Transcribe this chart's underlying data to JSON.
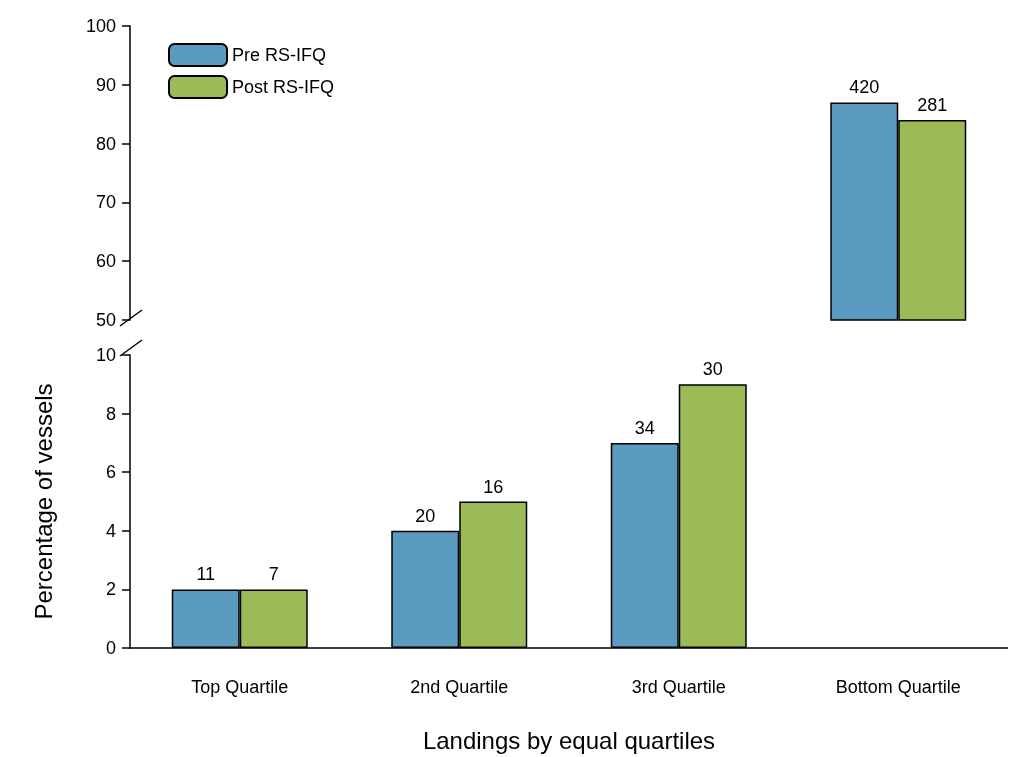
{
  "chart_data": [
    {
      "type": "bar",
      "categories": [
        "Top Quartile",
        "2nd Quartile",
        "3rd Quartile",
        "Bottom Quartile"
      ],
      "ylim": [
        50,
        100
      ],
      "yticks": [
        50,
        60,
        70,
        80,
        90,
        100
      ],
      "tick_labels": "y",
      "legend": "top left",
      "grid": false,
      "annotations": [
        {
          "text": "420",
          "x": "Bottom Quartile",
          "y": 87
        },
        {
          "text": "281",
          "x": "Bottom Quartile",
          "y": 84
        }
      ],
      "series": [
        {
          "name": "Pre RS-IFQ",
          "color": "#5b9bbf",
          "values": [
            null,
            null,
            null,
            87
          ]
        },
        {
          "name": "Post RS-IFQ",
          "color": "#9bbb59",
          "values": [
            null,
            null,
            null,
            84
          ]
        }
      ]
    },
    {
      "type": "bar",
      "categories": [
        "Top Quartile",
        "2nd Quartile",
        "3rd Quartile",
        "Bottom Quartile"
      ],
      "ylim": [
        0,
        10
      ],
      "yticks": [
        0,
        2,
        4,
        6,
        8,
        10
      ],
      "xlabel": "Landings by equal quartiles",
      "ylabel": "Percentage of vessels",
      "legend": false,
      "grid": false,
      "series": [
        {
          "color": "#5b9bbf",
          "values": [
            2,
            4,
            7,
            null
          ]
        },
        {
          "color": "#9bbb59",
          "values": [
            2,
            5,
            9,
            null
          ]
        }
      ],
      "annotations": [
        {
          "text": "11",
          "x": "Top Quartile",
          "y": 2
        },
        {
          "text": "7",
          "x": "Top Quartile",
          "y": 2
        },
        {
          "text": "20",
          "x": "2nd Quartile",
          "y": 4
        },
        {
          "text": "16",
          "x": "2nd Quartile",
          "y": 5
        },
        {
          "text": "34",
          "x": "3rd Quartile",
          "y": 7
        },
        {
          "text": "30",
          "x": "3rd Quartile",
          "y": 9
        }
      ]
    }
  ]
}
